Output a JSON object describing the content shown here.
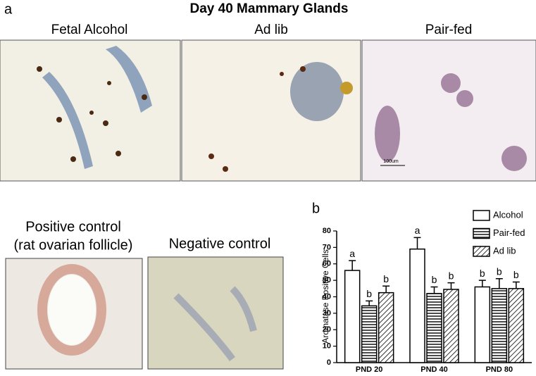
{
  "panel_a": {
    "label": "a",
    "title": "Day 40 Mammary Glands",
    "images": [
      {
        "label": "Fetal Alcohol"
      },
      {
        "label": "Ad lib"
      },
      {
        "label": "Pair-fed",
        "scale_bar": "100um"
      }
    ]
  },
  "controls": {
    "positive": [
      "Positive control",
      "(rat ovarian follicle)"
    ],
    "negative": "Negative control"
  },
  "panel_b": {
    "label": "b"
  },
  "chart_data": {
    "type": "bar",
    "ylabel": "Aromatase Positive Cells",
    "categories": [
      "PND 20",
      "PND 40",
      "PND 80"
    ],
    "series": [
      {
        "name": "Alcohol",
        "color": "#000000",
        "pattern": "none",
        "values": [
          56,
          69,
          46
        ],
        "errors": [
          6,
          7,
          4
        ],
        "letters": [
          "a",
          "a",
          "b"
        ]
      },
      {
        "name": "Pair-fed",
        "color": "#000000",
        "pattern": "horizontal",
        "values": [
          34.5,
          42,
          45
        ],
        "errors": [
          3,
          4,
          6
        ],
        "letters": [
          "b",
          "b",
          "b"
        ]
      },
      {
        "name": "Ad lib",
        "color": "#000000",
        "pattern": "diagonal",
        "values": [
          42.5,
          44.5,
          45
        ],
        "errors": [
          4,
          4,
          4
        ],
        "letters": [
          "b",
          "b",
          "b"
        ]
      }
    ],
    "ylim": [
      0,
      80
    ],
    "yticks": [
      0,
      10,
      20,
      30,
      40,
      50,
      60,
      70,
      80
    ],
    "legend": "top-right"
  }
}
